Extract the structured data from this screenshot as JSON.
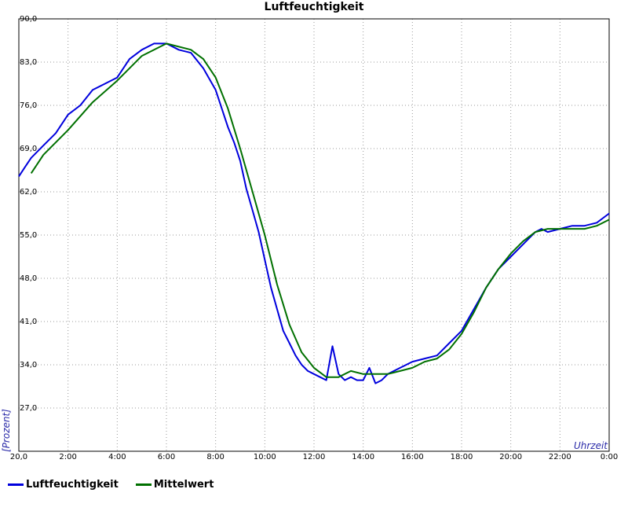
{
  "chart_data": {
    "type": "line",
    "title": "Luftfeuchtigkeit",
    "xlabel": "Uhrzeit",
    "ylabel": "[Prozent]",
    "xlim": [
      0,
      24
    ],
    "ylim": [
      20,
      90
    ],
    "x_tick_labels": [
      "20,0",
      "2:00",
      "4:00",
      "6:00",
      "8:00",
      "10:00",
      "12:00",
      "14:00",
      "16:00",
      "18:00",
      "20:00",
      "22:00",
      "0:00"
    ],
    "y_tick_labels": [
      "90,0",
      "83,0",
      "76,0",
      "69,0",
      "62,0",
      "55,0",
      "48,0",
      "41,0",
      "34,0",
      "27,0"
    ],
    "grid": true,
    "legend_position": "bottom-left",
    "series": [
      {
        "name": "Luftfeuchtigkeit",
        "color": "#0000dd",
        "x": [
          0,
          0.25,
          0.5,
          1,
          1.5,
          2,
          2.5,
          3,
          3.5,
          4,
          4.5,
          5,
          5.5,
          6,
          6.5,
          7,
          7.5,
          8,
          8.25,
          8.5,
          8.75,
          9,
          9.25,
          9.5,
          9.75,
          10,
          10.25,
          10.5,
          10.75,
          11,
          11.25,
          11.5,
          11.75,
          12,
          12.25,
          12.5,
          12.75,
          13,
          13.25,
          13.5,
          13.75,
          14,
          14.25,
          14.5,
          14.75,
          15,
          15.5,
          16,
          16.5,
          17,
          17.5,
          18,
          18.5,
          19,
          19.5,
          20,
          20.5,
          21,
          21.25,
          21.5,
          22,
          22.5,
          23,
          23.5,
          24
        ],
        "y": [
          64.5,
          66,
          67.5,
          69.5,
          71.5,
          74.5,
          76,
          78.5,
          79.5,
          80.5,
          83.5,
          85,
          86,
          86,
          85,
          84.5,
          82,
          78.5,
          75.5,
          72.5,
          70,
          67,
          62.5,
          59,
          55.5,
          51,
          46.5,
          43,
          39.5,
          37.5,
          35.5,
          34,
          33,
          32.5,
          32,
          31.5,
          37,
          32.5,
          31.5,
          32,
          31.5,
          31.5,
          33.5,
          31,
          31.5,
          32.5,
          33.5,
          34.5,
          35,
          35.5,
          37.5,
          39.5,
          43,
          46.5,
          49.5,
          51.5,
          53.5,
          55.5,
          56,
          55.5,
          56,
          56.5,
          56.5,
          57,
          58.5
        ]
      },
      {
        "name": "Mittelwert",
        "color": "#007000",
        "x": [
          0.5,
          1,
          2,
          3,
          4,
          5,
          6,
          7,
          7.5,
          8,
          8.5,
          9,
          9.5,
          10,
          10.5,
          11,
          11.5,
          12,
          12.5,
          13,
          13.5,
          14,
          14.5,
          15,
          15.5,
          16,
          16.5,
          17,
          17.5,
          18,
          18.5,
          19,
          19.5,
          20,
          20.5,
          21,
          21.5,
          22,
          22.5,
          23,
          23.5,
          24
        ],
        "y": [
          65,
          68,
          72,
          76.5,
          80,
          84,
          86,
          85,
          83.5,
          80.5,
          75.5,
          69,
          62,
          55,
          47,
          40.5,
          36,
          33.5,
          32,
          32,
          33,
          32.5,
          32.5,
          32.5,
          33,
          33.5,
          34.5,
          35,
          36.5,
          39,
          42.5,
          46.5,
          49.5,
          52,
          54,
          55.5,
          56,
          56,
          56,
          56,
          56.5,
          57.5
        ]
      }
    ]
  }
}
